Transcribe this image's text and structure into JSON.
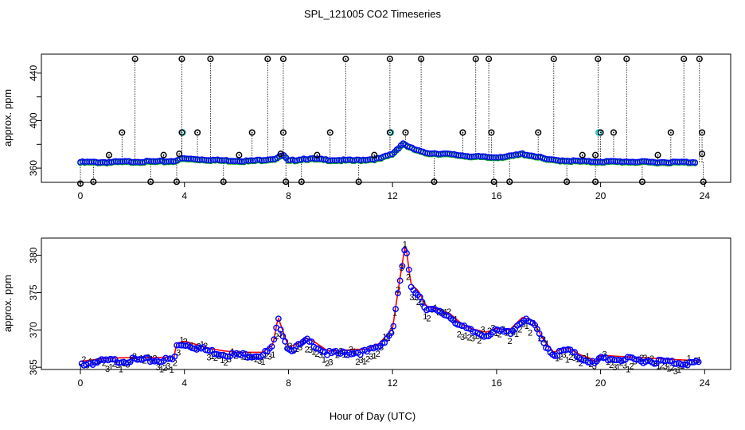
{
  "figure": {
    "title": "SPL_121005  CO2 Timeseries",
    "xlabel": "Hour of Day (UTC)"
  },
  "colors": {
    "series1": "#ff0000",
    "series2": "#00b000",
    "series3": "#0000ff",
    "series_cyan": "#00c8c8",
    "outlier": "#000000"
  },
  "chart_data": [
    {
      "type": "scatter",
      "title": "",
      "xlabel": "",
      "ylabel": "approx. ppm",
      "xlim": [
        -1.5,
        25
      ],
      "ylim": [
        348,
        456
      ],
      "xticks": [
        0,
        4,
        8,
        12,
        16,
        20,
        24
      ],
      "yticks": [
        360,
        400,
        440
      ],
      "yminor": [
        380,
        420
      ],
      "grid": false,
      "baseline": [
        [
          0,
          365
        ],
        [
          1,
          365
        ],
        [
          2,
          365.5
        ],
        [
          3,
          365.5
        ],
        [
          3.6,
          366
        ],
        [
          3.9,
          368
        ],
        [
          4.5,
          367.5
        ],
        [
          5.5,
          366.5
        ],
        [
          6.5,
          366
        ],
        [
          7.5,
          368
        ],
        [
          7.8,
          371
        ],
        [
          8.0,
          366
        ],
        [
          8.6,
          368
        ],
        [
          9.5,
          367
        ],
        [
          10.5,
          366.5
        ],
        [
          11.5,
          368
        ],
        [
          12.0,
          372
        ],
        [
          12.4,
          381
        ],
        [
          12.7,
          377
        ],
        [
          13.2,
          373
        ],
        [
          14,
          372
        ],
        [
          15,
          370
        ],
        [
          15.8,
          369
        ],
        [
          16.5,
          370
        ],
        [
          17.0,
          372
        ],
        [
          17.5,
          370
        ],
        [
          18.0,
          367
        ],
        [
          19.0,
          366
        ],
        [
          19.6,
          365.5
        ],
        [
          20,
          365.5
        ],
        [
          21,
          365.5
        ],
        [
          22,
          365
        ],
        [
          23,
          365
        ],
        [
          23.6,
          365
        ]
      ],
      "outliers": [
        {
          "x": 0.0,
          "y": 347
        },
        {
          "x": 0.5,
          "y": 348.5
        },
        {
          "x": 1.1,
          "y": 371
        },
        {
          "x": 1.6,
          "y": 390
        },
        {
          "x": 2.1,
          "y": 452
        },
        {
          "x": 2.7,
          "y": 348.5
        },
        {
          "x": 3.2,
          "y": 371
        },
        {
          "x": 3.7,
          "y": 348.5
        },
        {
          "x": 3.8,
          "y": 372
        },
        {
          "x": 3.9,
          "y": 452
        },
        {
          "x": 3.9,
          "y": 390
        },
        {
          "x": 4.5,
          "y": 390
        },
        {
          "x": 5.0,
          "y": 452
        },
        {
          "x": 5.5,
          "y": 348.5
        },
        {
          "x": 6.1,
          "y": 371
        },
        {
          "x": 6.6,
          "y": 390
        },
        {
          "x": 7.2,
          "y": 452
        },
        {
          "x": 7.7,
          "y": 372
        },
        {
          "x": 7.8,
          "y": 452
        },
        {
          "x": 7.8,
          "y": 390
        },
        {
          "x": 7.9,
          "y": 348.5
        },
        {
          "x": 8.5,
          "y": 348.5
        },
        {
          "x": 9.1,
          "y": 371
        },
        {
          "x": 9.6,
          "y": 390
        },
        {
          "x": 10.2,
          "y": 452
        },
        {
          "x": 10.7,
          "y": 348.5
        },
        {
          "x": 11.3,
          "y": 371
        },
        {
          "x": 11.9,
          "y": 452
        },
        {
          "x": 11.9,
          "y": 390
        },
        {
          "x": 12.5,
          "y": 390
        },
        {
          "x": 13.1,
          "y": 452
        },
        {
          "x": 13.6,
          "y": 348.5
        },
        {
          "x": 14.7,
          "y": 390
        },
        {
          "x": 15.2,
          "y": 452
        },
        {
          "x": 15.7,
          "y": 452
        },
        {
          "x": 15.8,
          "y": 390
        },
        {
          "x": 15.9,
          "y": 348.5
        },
        {
          "x": 16.5,
          "y": 348.5
        },
        {
          "x": 17.6,
          "y": 390
        },
        {
          "x": 18.2,
          "y": 452
        },
        {
          "x": 18.7,
          "y": 348.5
        },
        {
          "x": 19.3,
          "y": 371
        },
        {
          "x": 19.8,
          "y": 371
        },
        {
          "x": 19.8,
          "y": 348.5
        },
        {
          "x": 19.9,
          "y": 452
        },
        {
          "x": 20.0,
          "y": 390
        },
        {
          "x": 20.5,
          "y": 390
        },
        {
          "x": 21.0,
          "y": 452
        },
        {
          "x": 21.6,
          "y": 348.5
        },
        {
          "x": 22.2,
          "y": 371
        },
        {
          "x": 22.7,
          "y": 390
        },
        {
          "x": 23.2,
          "y": 452
        },
        {
          "x": 23.8,
          "y": 452
        },
        {
          "x": 23.9,
          "y": 390
        },
        {
          "x": 23.9,
          "y": 372
        },
        {
          "x": 23.95,
          "y": 348.5
        }
      ],
      "cyan_points": [
        {
          "x": 3.9,
          "y": 390
        },
        {
          "x": 11.9,
          "y": 390
        },
        {
          "x": 19.9,
          "y": 390
        }
      ]
    },
    {
      "type": "line",
      "title": "",
      "xlabel": "Hour of Day (UTC)",
      "ylabel": "approx. ppm",
      "xlim": [
        -1.5,
        25
      ],
      "ylim": [
        364.7,
        382.3
      ],
      "xticks": [
        0,
        4,
        8,
        12,
        16,
        20,
        24
      ],
      "yticks": [
        365,
        370,
        375,
        380
      ],
      "grid": false,
      "point_labels": [
        "1",
        "2",
        "3"
      ],
      "baseline": [
        [
          0,
          365.6
        ],
        [
          0.5,
          365.8
        ],
        [
          1,
          366
        ],
        [
          2,
          366.1
        ],
        [
          3,
          366.1
        ],
        [
          3.6,
          366.2
        ],
        [
          3.7,
          368
        ],
        [
          4.0,
          368.3
        ],
        [
          4.5,
          367.8
        ],
        [
          5.0,
          367.3
        ],
        [
          5.5,
          367
        ],
        [
          6.0,
          366.8
        ],
        [
          7.0,
          366.8
        ],
        [
          7.4,
          367.8
        ],
        [
          7.6,
          371.5
        ],
        [
          7.8,
          369.5
        ],
        [
          8.0,
          367.5
        ],
        [
          8.4,
          368
        ],
        [
          8.7,
          368.7
        ],
        [
          9.0,
          368.2
        ],
        [
          9.5,
          367
        ],
        [
          10.0,
          367
        ],
        [
          10.5,
          367.2
        ],
        [
          11.0,
          367.2
        ],
        [
          11.5,
          368
        ],
        [
          12.0,
          370
        ],
        [
          12.3,
          377
        ],
        [
          12.5,
          381.5
        ],
        [
          12.7,
          376
        ],
        [
          13.0,
          375
        ],
        [
          13.3,
          373
        ],
        [
          13.8,
          372.5
        ],
        [
          14.2,
          372
        ],
        [
          14.7,
          370.5
        ],
        [
          15.0,
          370
        ],
        [
          15.6,
          369.5
        ],
        [
          16.0,
          370
        ],
        [
          16.5,
          369.8
        ],
        [
          17.0,
          371.5
        ],
        [
          17.4,
          371
        ],
        [
          17.8,
          368.5
        ],
        [
          18.2,
          366.8
        ],
        [
          18.7,
          367.5
        ],
        [
          19.2,
          366.5
        ],
        [
          19.6,
          366
        ],
        [
          19.8,
          365.5
        ],
        [
          20.0,
          366.4
        ],
        [
          21.0,
          366.2
        ],
        [
          22.0,
          366
        ],
        [
          23.0,
          365.8
        ],
        [
          23.8,
          365.7
        ]
      ]
    }
  ]
}
